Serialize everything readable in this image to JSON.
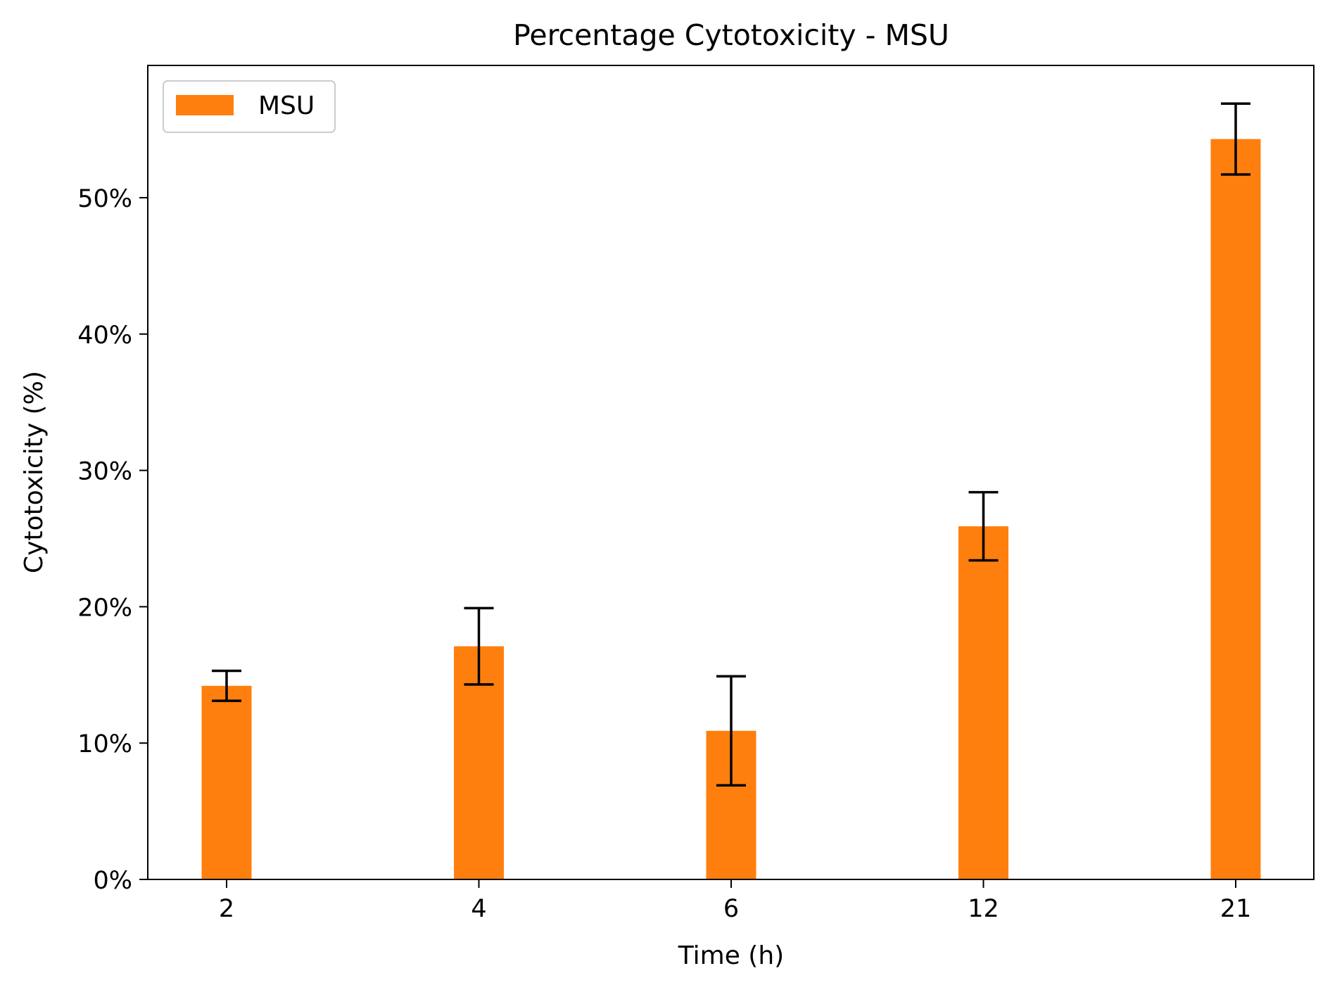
{
  "chart_data": {
    "type": "bar",
    "title": "Percentage Cytotoxicity - MSU",
    "xlabel": "Time (h)",
    "ylabel": "Cytotoxicity (%)",
    "categories": [
      "2",
      "4",
      "6",
      "12",
      "21"
    ],
    "series": [
      {
        "name": "MSU",
        "color": "#ff7f0e",
        "values": [
          14.2,
          17.1,
          10.9,
          25.9,
          54.3
        ],
        "errors": [
          1.1,
          2.8,
          4.0,
          2.5,
          2.6
        ]
      }
    ],
    "ylim": [
      0,
      59.7
    ],
    "yticks": [
      0,
      10,
      20,
      30,
      40,
      50
    ],
    "ytick_labels": [
      "0%",
      "10%",
      "20%",
      "30%",
      "40%",
      "50%"
    ],
    "grid": false,
    "legend_position": "upper-left",
    "error_bar_color": "#000000"
  }
}
